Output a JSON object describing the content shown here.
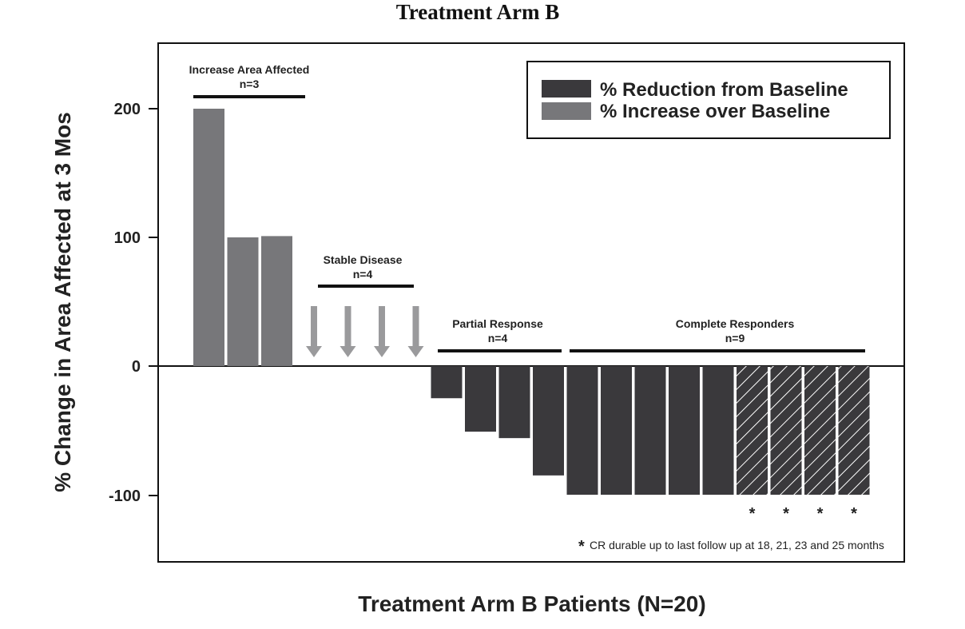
{
  "chart_data": {
    "type": "bar",
    "title": "Treatment Arm B",
    "xlabel": "Treatment Arm B Patients (N=20)",
    "ylabel": "% Change in Area Affected at 3 Mos",
    "ylim": [
      -150,
      250
    ],
    "yticks": [
      "200",
      "100",
      "0",
      "-100"
    ],
    "legend": {
      "placement": "top-right",
      "items": [
        {
          "label": "% Reduction from Baseline",
          "color": "#3a393c"
        },
        {
          "label": "% Increase over Baseline",
          "color": "#77777a"
        }
      ]
    },
    "groups": [
      {
        "name": "Increase Area Affected",
        "n": "n=3"
      },
      {
        "name": "Stable Disease",
        "n": "n=4"
      },
      {
        "name": "Partial Response",
        "n": "n=4"
      },
      {
        "name": "Complete Responders",
        "n": "n=9"
      }
    ],
    "series": [
      {
        "values": [
          200,
          100,
          101,
          0,
          0,
          0,
          0,
          -25,
          -51,
          -56,
          -85,
          -100,
          -100,
          -100,
          -100,
          -100,
          -100,
          -100,
          -100,
          -100
        ],
        "kinds": [
          "increase",
          "increase",
          "increase",
          "stable",
          "stable",
          "stable",
          "stable",
          "reduction",
          "reduction",
          "reduction",
          "reduction",
          "reduction",
          "reduction",
          "reduction",
          "reduction",
          "reduction",
          "durable",
          "durable",
          "durable",
          "durable"
        ]
      }
    ],
    "star_marker": "*",
    "footnote_marker": "*",
    "footnote": "CR durable up to last follow up at 18, 21, 23 and 25 months"
  }
}
